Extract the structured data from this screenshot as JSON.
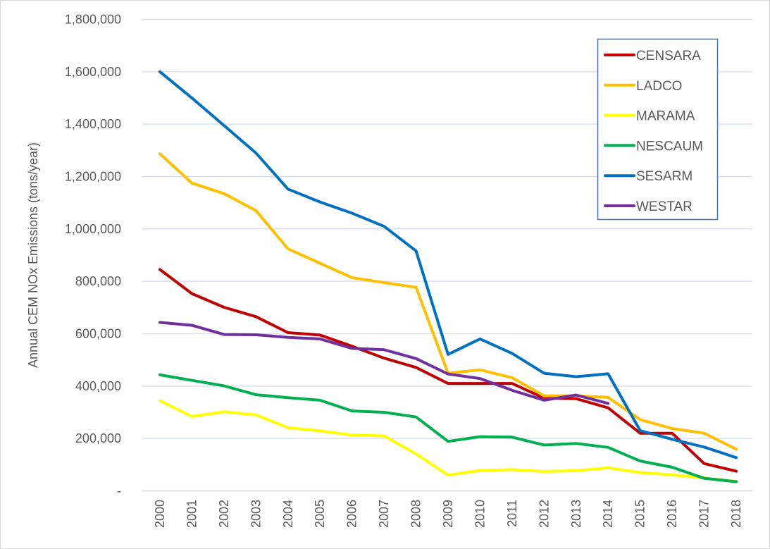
{
  "chart_data": {
    "type": "line",
    "title": "",
    "xlabel": "",
    "ylabel": "Annual CEM NOx Emissions (tons/year)",
    "ylim": [
      0,
      1800000
    ],
    "ytick_step": 200000,
    "y_ticks": [
      "-",
      "200,000",
      "400,000",
      "600,000",
      "800,000",
      "1,000,000",
      "1,200,000",
      "1,400,000",
      "1,600,000",
      "1,800,000"
    ],
    "grid": "horizontal",
    "legend_position": "top-right",
    "categories": [
      "2000",
      "2001",
      "2002",
      "2003",
      "2004",
      "2005",
      "2006",
      "2007",
      "2008",
      "2009",
      "2010",
      "2011",
      "2012",
      "2013",
      "2014",
      "2015",
      "2016",
      "2017",
      "2018"
    ],
    "series": [
      {
        "name": "CENSARA",
        "color": "#C00000",
        "values": [
          845000,
          753000,
          701000,
          665000,
          604000,
          595000,
          552000,
          507000,
          471000,
          410000,
          410000,
          410000,
          354000,
          352000,
          317000,
          220000,
          220000,
          104000,
          75000
        ]
      },
      {
        "name": "LADCO",
        "color": "#FFC000",
        "values": [
          1287000,
          1175000,
          1135000,
          1070000,
          924000,
          869000,
          814000,
          795000,
          777000,
          449000,
          462000,
          432000,
          363000,
          363000,
          357000,
          272000,
          238000,
          220000,
          159000
        ]
      },
      {
        "name": "MARAMA",
        "color": "#FFFF00",
        "values": [
          344000,
          284000,
          302000,
          290000,
          241000,
          229000,
          213000,
          210000,
          141000,
          60000,
          78000,
          81000,
          74000,
          77000,
          88000,
          70000,
          61000,
          49000,
          36000
        ]
      },
      {
        "name": "NESCAUM",
        "color": "#00B050",
        "values": [
          443000,
          422000,
          401000,
          367000,
          356000,
          346000,
          305000,
          300000,
          282000,
          189000,
          207000,
          205000,
          175000,
          181000,
          166000,
          114000,
          90000,
          48000,
          35000
        ]
      },
      {
        "name": "SESARM",
        "color": "#0070C0",
        "values": [
          1600000,
          1500000,
          1395000,
          1290000,
          1152000,
          1103000,
          1060000,
          1010000,
          916000,
          521000,
          580000,
          525000,
          449000,
          436000,
          447000,
          230000,
          197000,
          167000,
          127000
        ]
      },
      {
        "name": "WESTAR",
        "color": "#7030A0",
        "values": [
          643000,
          632000,
          597000,
          596000,
          586000,
          580000,
          544000,
          539000,
          505000,
          446000,
          429000,
          384000,
          346000,
          366000,
          334000,
          null,
          null,
          null,
          null
        ]
      }
    ]
  }
}
